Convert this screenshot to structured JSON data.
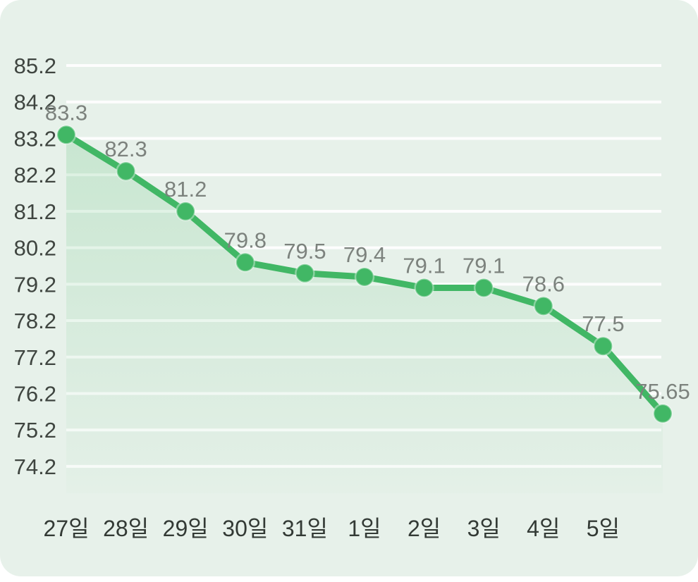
{
  "chart_data": {
    "type": "line",
    "title": "",
    "xlabel": "",
    "ylabel": "",
    "x_labels": [
      "27일",
      "28일",
      "29일",
      "30일",
      "31일",
      "1일",
      "2일",
      "3일",
      "4일",
      "5일"
    ],
    "values": [
      83.3,
      82.3,
      81.2,
      79.8,
      79.5,
      79.4,
      79.1,
      79.1,
      78.6,
      77.5,
      75.65
    ],
    "point_labels": [
      "83.3",
      "82.3",
      "81.2",
      "79.8",
      "79.5",
      "79.4",
      "79.1",
      "79.1",
      "78.6",
      "77.5",
      "75.65"
    ],
    "y_ticks": [
      "85.2",
      "84.2",
      "83.2",
      "82.2",
      "81.2",
      "80.2",
      "79.2",
      "78.2",
      "77.2",
      "76.2",
      "75.2",
      "74.2"
    ],
    "ylim": [
      74.2,
      85.2
    ],
    "grid": true,
    "legend": false,
    "notes": "11th data point has no x-axis label; area under line is filled",
    "colors": {
      "line": "#41b765",
      "marker": "#41b765",
      "marker_ring": "rgba(255,255,255,0.38)",
      "area_top": "rgba(76,186,106,0.20)",
      "area_bottom": "rgba(76,186,106,0.02)",
      "gridline": "#ffffff",
      "background": "#e7f1ea",
      "y_tick_label": "#3f4540",
      "x_tick_label": "#333a35",
      "point_label": "#7c827d"
    }
  }
}
